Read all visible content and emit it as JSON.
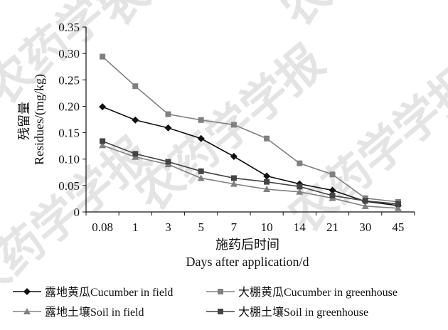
{
  "watermark": "农药学学报",
  "chart_data": {
    "type": "line",
    "ylabel_cn": "残留量",
    "ylabel_en": "Residues/(mg/kg)",
    "xlabel_cn": "施药后时间",
    "xlabel_en": "Days after application/d",
    "categories": [
      "0.08",
      "1",
      "3",
      "5",
      "7",
      "10",
      "14",
      "21",
      "30",
      "45"
    ],
    "ylim": [
      0,
      0.35
    ],
    "yticks": [
      "0",
      "0.05",
      "0.10",
      "0.15",
      "0.20",
      "0.25",
      "0.30",
      "0.35"
    ],
    "grid": false,
    "legend_position": "bottom",
    "series": [
      {
        "name": "露地黄瓜Cucumber in field",
        "marker": "diamond",
        "color": "#111111",
        "values": [
          0.199,
          0.174,
          0.159,
          0.139,
          0.105,
          0.068,
          0.053,
          0.041,
          0.02,
          0.012
        ]
      },
      {
        "name": "大棚黄瓜Cucumber in greenhouse",
        "marker": "square",
        "color": "#808080",
        "values": [
          0.294,
          0.238,
          0.185,
          0.174,
          0.165,
          0.139,
          0.092,
          0.071,
          0.026,
          0.019
        ]
      },
      {
        "name": "露地土壤Soil in field",
        "marker": "triangle",
        "color": "#808080",
        "values": [
          0.126,
          0.104,
          0.09,
          0.064,
          0.053,
          0.043,
          0.038,
          0.026,
          0.011,
          0.007
        ]
      },
      {
        "name": "大棚土壤Soil in greenhouse",
        "marker": "square",
        "color": "#444444",
        "values": [
          0.134,
          0.11,
          0.095,
          0.077,
          0.064,
          0.057,
          0.048,
          0.031,
          0.021,
          0.015
        ]
      }
    ]
  }
}
